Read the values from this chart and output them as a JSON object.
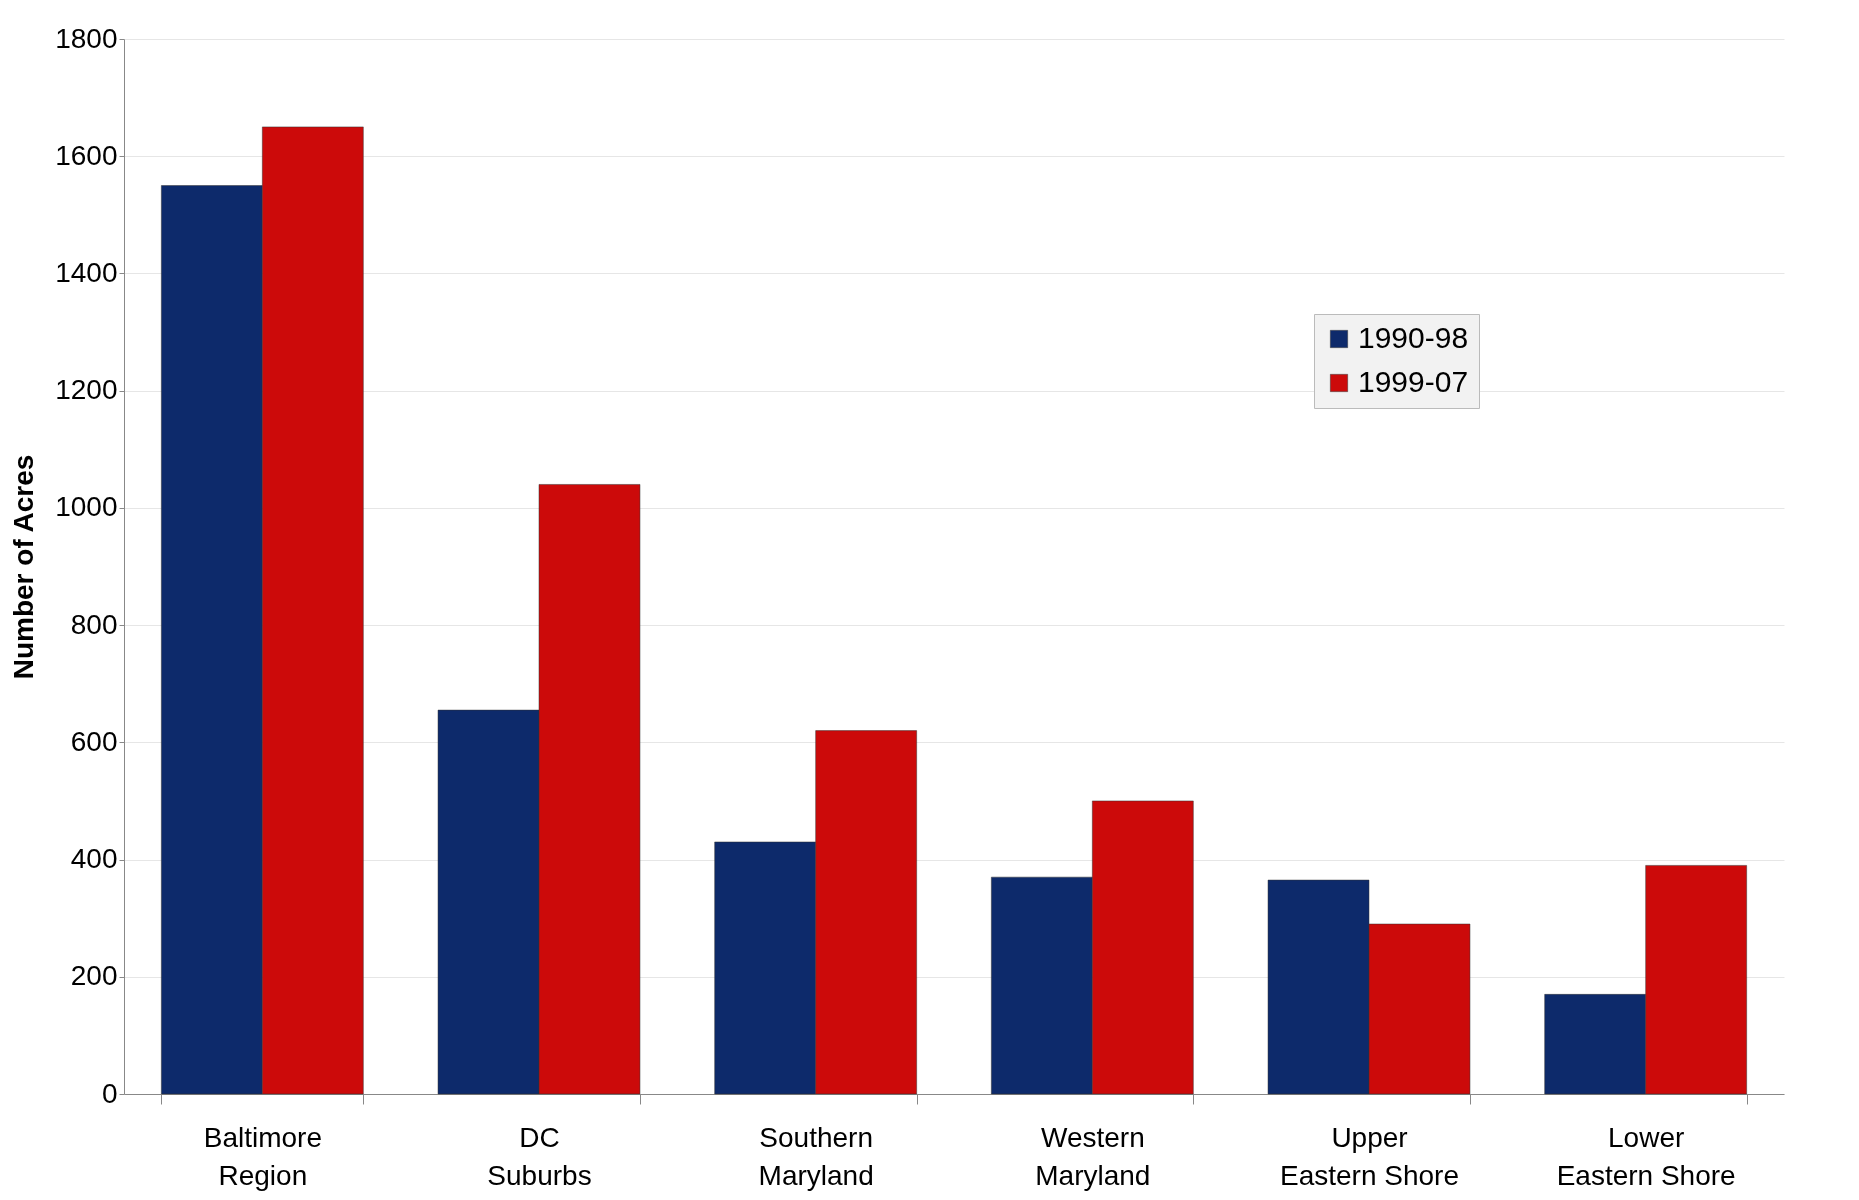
{
  "chart_data": {
    "type": "bar",
    "ylabel": "Number of Acres",
    "categories": [
      "Baltimore Region",
      "DC Suburbs",
      "Southern Maryland",
      "Western Maryland",
      "Upper Eastern Shore",
      "Lower Eastern Shore"
    ],
    "series": [
      {
        "name": "1990-98",
        "color": "#0d2a6b",
        "values": [
          1550,
          655,
          430,
          370,
          365,
          170
        ]
      },
      {
        "name": "1999-07",
        "color": "#cc0a0a",
        "values": [
          1650,
          1040,
          620,
          500,
          290,
          390
        ]
      }
    ],
    "ylim": [
      0,
      1800
    ],
    "yticks": [
      0,
      200,
      400,
      600,
      800,
      1000,
      1200,
      1400,
      1600,
      1800
    ],
    "grid": "y",
    "legend": "top right"
  }
}
